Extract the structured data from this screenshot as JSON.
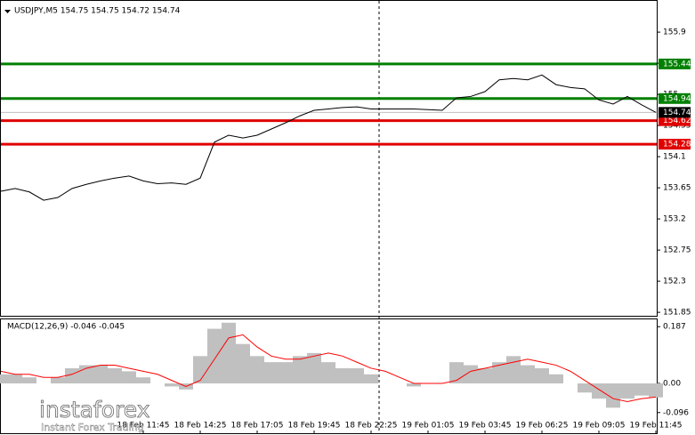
{
  "chart_data": [
    {
      "type": "line",
      "title": "USDJPY,M5  154.75 154.75 154.72 154.74",
      "categories": [
        null,
        null,
        null,
        null,
        null,
        null,
        null,
        null,
        null,
        null,
        "18 Feb 11:45",
        null,
        null,
        null,
        "18 Feb 14:25",
        null,
        null,
        null,
        "18 Feb 17:05",
        null,
        null,
        null,
        "18 Feb 19:45",
        null,
        null,
        null,
        "18 Feb 22:25",
        null,
        null,
        null,
        "19 Feb 01:05",
        null,
        null,
        null,
        "19 Feb 03:45",
        null,
        null,
        null,
        "19 Feb 06:25",
        null,
        null,
        null,
        "19 Feb 09:05",
        null,
        null,
        null,
        "19 Feb 11:45"
      ],
      "series": [
        {
          "name": "USDJPY",
          "color": "#000000",
          "values": [
            153.6,
            153.64,
            153.59,
            153.47,
            153.51,
            153.64,
            153.7,
            153.75,
            153.79,
            153.82,
            153.75,
            153.71,
            153.72,
            153.7,
            153.79,
            154.31,
            154.41,
            154.37,
            154.41,
            154.5,
            154.59,
            154.69,
            154.77,
            154.79,
            154.81,
            154.82,
            154.79,
            154.79,
            154.79,
            154.79,
            154.78,
            154.77,
            154.95,
            154.97,
            155.04,
            155.21,
            155.23,
            155.21,
            155.28,
            155.14,
            155.1,
            155.08,
            154.92,
            154.86,
            154.97,
            154.85,
            154.74
          ]
        }
      ],
      "ylim": [
        151.8,
        156.3
      ],
      "yticks": [
        155.9,
        155.45,
        155.0,
        154.55,
        154.1,
        153.65,
        153.2,
        152.75,
        152.3,
        151.85
      ],
      "levels": [
        {
          "value": 155.44,
          "color": "#008000"
        },
        {
          "value": 154.94,
          "color": "#008000"
        },
        {
          "value": 154.62,
          "color": "#e00000"
        },
        {
          "value": 154.28,
          "color": "#e00000"
        }
      ],
      "last": {
        "value": 154.74,
        "color": "#000000"
      }
    },
    {
      "type": "bar",
      "title": "MACD(12,26,9) -0.046 -0.045",
      "series": [
        {
          "name": "MACD",
          "type": "bar",
          "color": "#c0c0c0",
          "values": [
            0.03,
            0.03,
            0.02,
            0.0,
            0.02,
            0.05,
            0.06,
            0.06,
            0.05,
            0.04,
            0.02,
            0.0,
            -0.01,
            -0.02,
            0.09,
            0.18,
            0.2,
            0.13,
            0.09,
            0.07,
            0.07,
            0.09,
            0.1,
            0.07,
            0.05,
            0.05,
            0.03,
            0.0,
            0.0,
            -0.01,
            0.0,
            0.0,
            0.07,
            0.06,
            0.05,
            0.07,
            0.09,
            0.06,
            0.05,
            0.03,
            0.0,
            -0.03,
            -0.05,
            -0.08,
            -0.05,
            -0.04,
            -0.046
          ]
        },
        {
          "name": "Signal",
          "type": "line",
          "color": "#ff0000",
          "values": [
            0.04,
            0.03,
            0.03,
            0.02,
            0.02,
            0.03,
            0.05,
            0.06,
            0.06,
            0.05,
            0.04,
            0.03,
            0.01,
            -0.01,
            0.01,
            0.08,
            0.15,
            0.16,
            0.12,
            0.09,
            0.08,
            0.08,
            0.09,
            0.1,
            0.09,
            0.07,
            0.05,
            0.04,
            0.02,
            0.0,
            0.0,
            0.0,
            0.01,
            0.04,
            0.05,
            0.06,
            0.07,
            0.08,
            0.07,
            0.06,
            0.04,
            0.01,
            -0.02,
            -0.05,
            -0.06,
            -0.05,
            -0.045
          ]
        }
      ],
      "ylim": [
        -0.167,
        0.214
      ],
      "yticks": [
        0.187,
        {
          "value": 0,
          "label": "0.00"
        },
        -0.096
      ]
    }
  ],
  "logo": {
    "name": "instaforex",
    "tagline": "Instant Forex Trading"
  }
}
